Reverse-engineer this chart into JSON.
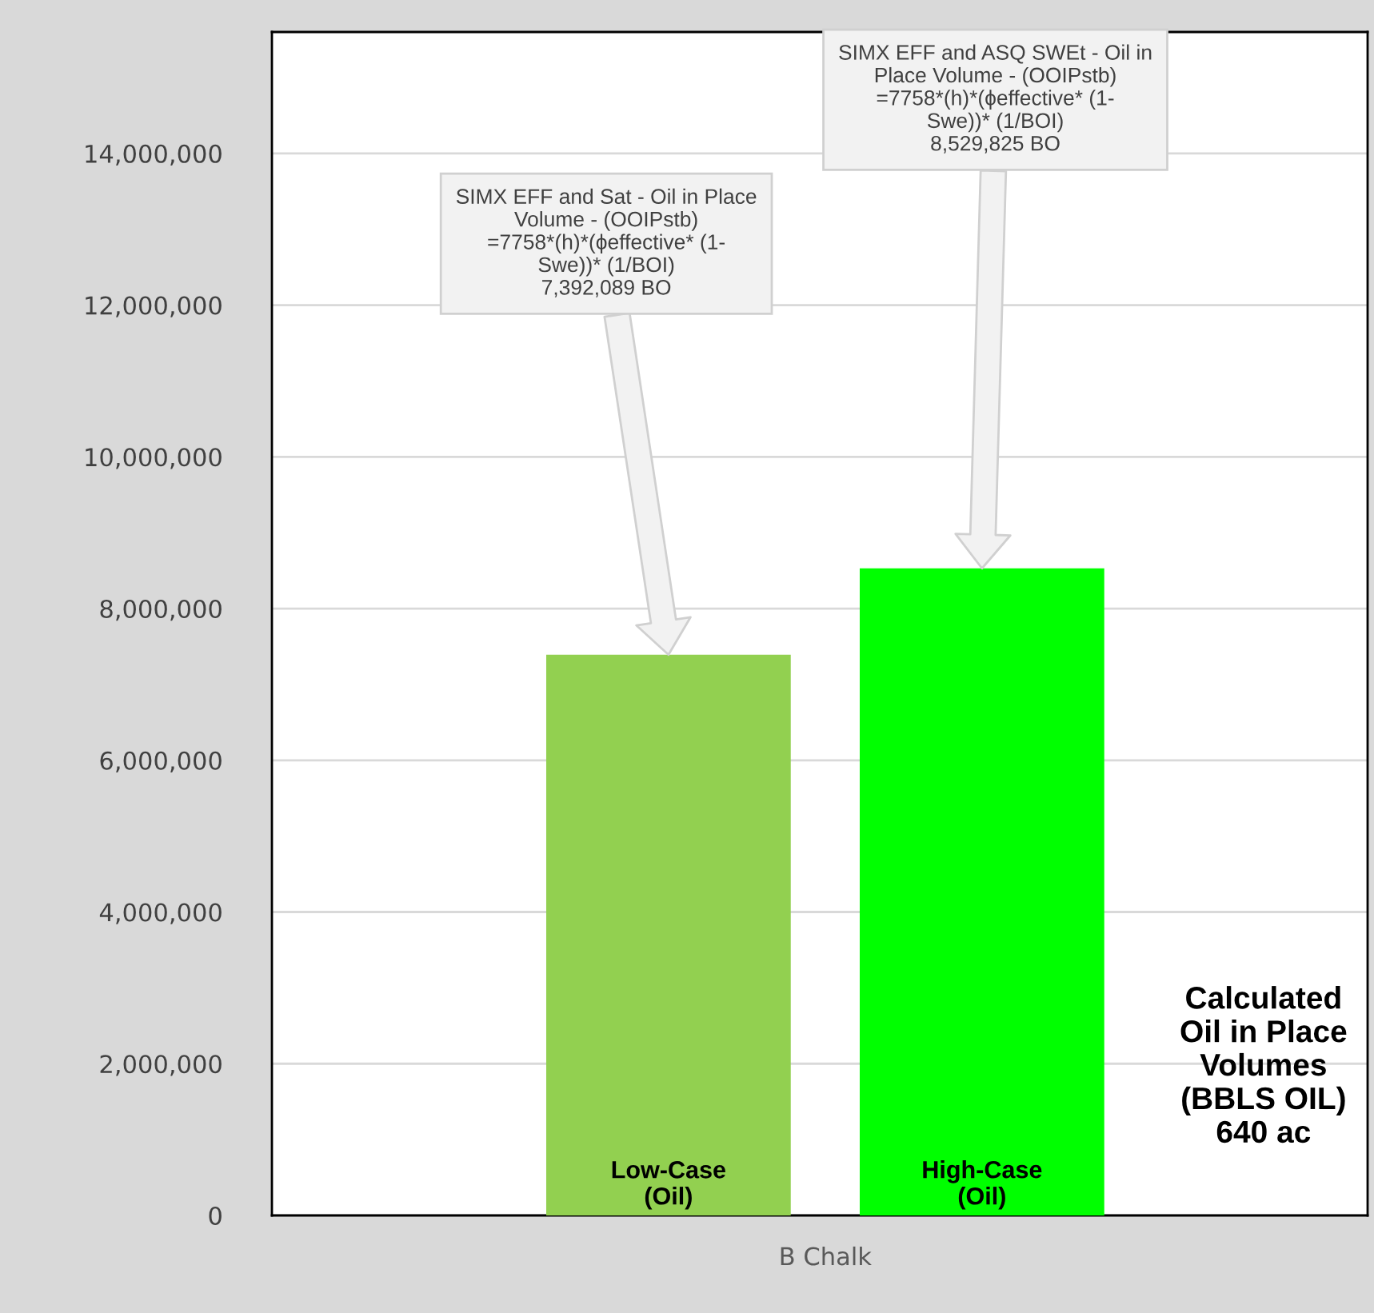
{
  "chart_data": {
    "type": "bar",
    "categories": [
      "B Chalk"
    ],
    "series": [
      {
        "name": "Low-Case\n(Oil)",
        "color": "#92d050",
        "values": [
          7392089
        ]
      },
      {
        "name": "High-Case\n(Oil)",
        "color": "#00ff00",
        "values": [
          8529825
        ]
      }
    ],
    "ylim": [
      0,
      15600000
    ],
    "yticks": [
      0,
      {
        "value": 2000000,
        "label": "2,000,000"
      },
      {
        "value": 4000000,
        "label": "4,000,000"
      },
      {
        "value": 6000000,
        "label": "6,000,000"
      },
      {
        "value": 8000000,
        "label": "8,000,000"
      },
      {
        "value": 10000000,
        "label": "10,000,000"
      },
      {
        "value": 12000000,
        "label": "12,000,000"
      },
      {
        "value": 14000000,
        "label": "14,000,000"
      }
    ],
    "grid": "y",
    "annotations": [
      "SIMX EFF and Sat - Oil in Place\nVolume - (OOIPstb)\n=7758*(h)*(ϕeffective* (1-\nSwe))* (1/BOI)\n7,392,089 BO",
      "SIMX EFF and ASQ SWEt - Oil in\nPlace Volume - (OOIPstb)\n=7758*(h)*(ϕeffective* (1-\nSwe))* (1/BOI)\n8,529,825 BO",
      "Calculated\nOil in Place\nVolumes\n(BBLS OIL)\n640 ac"
    ]
  }
}
